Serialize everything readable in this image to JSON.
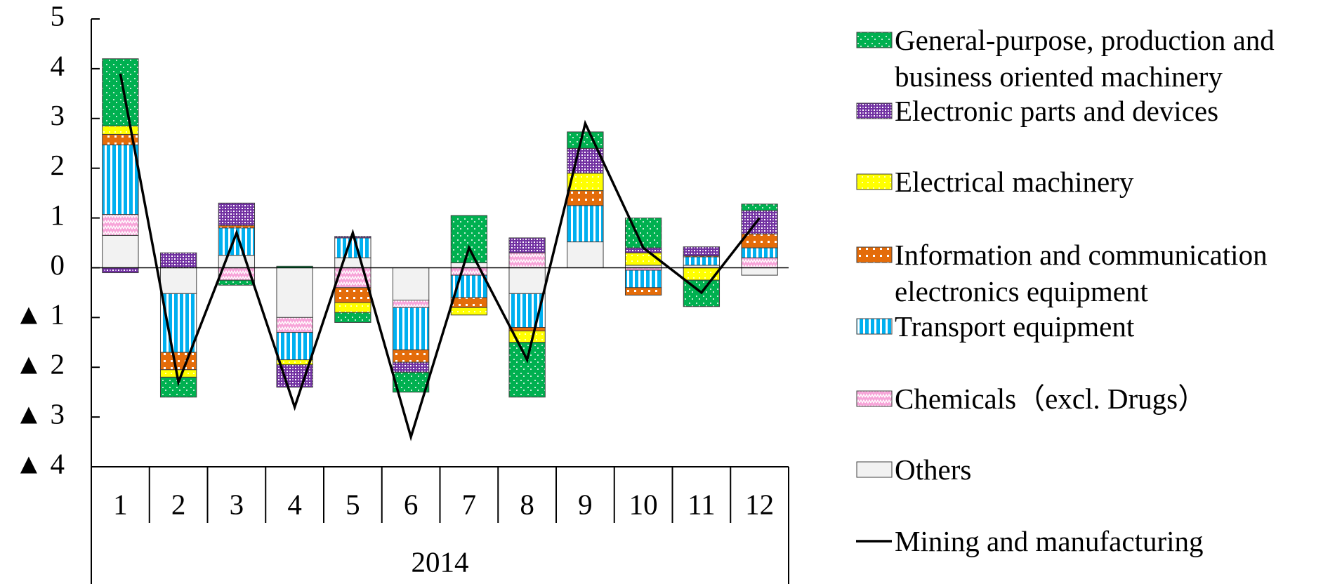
{
  "chart_data": {
    "type": "bar",
    "stacked": true,
    "categories": [
      "1",
      "2",
      "3",
      "4",
      "5",
      "6",
      "7",
      "8",
      "9",
      "10",
      "11",
      "12"
    ],
    "category_group": "2014",
    "ylim": [
      -4,
      5
    ],
    "yticks": [
      {
        "value": -4,
        "label": "▲ 4"
      },
      {
        "value": -3,
        "label": "▲ 3"
      },
      {
        "value": -2,
        "label": "▲ 2"
      },
      {
        "value": -1,
        "label": "▲ 1"
      },
      0,
      1,
      2,
      3,
      4,
      5
    ],
    "series": [
      {
        "name": "General-purpose, production and business oriented machinery",
        "color": "#00b050",
        "values": [
          1.35,
          -0.4,
          -0.1,
          0.03,
          -0.2,
          -0.4,
          0.95,
          -1.1,
          0.33,
          0.6,
          -0.53,
          0.13
        ]
      },
      {
        "name": "Electronic parts and devices",
        "color": "#7030a0",
        "values": [
          -0.1,
          0.3,
          0.45,
          -0.45,
          0.03,
          -0.2,
          0,
          0.3,
          0.5,
          0.1,
          0.18,
          0.47
        ]
      },
      {
        "name": "Electrical machinery",
        "color": "#ffff00",
        "values": [
          0.17,
          -0.15,
          0,
          -0.1,
          -0.2,
          0,
          -0.15,
          -0.23,
          0.35,
          0.25,
          -0.25,
          0
        ]
      },
      {
        "name": "Information and communication electronics equipment",
        "color": "#e46c0a",
        "values": [
          0.21,
          -0.35,
          0.05,
          0,
          -0.3,
          -0.25,
          -0.2,
          -0.07,
          0.3,
          -0.15,
          0.02,
          0.28
        ]
      },
      {
        "name": "Transport equipment",
        "color": "#00b0f0",
        "values": [
          1.4,
          -1.18,
          0.55,
          -0.55,
          0.4,
          -0.85,
          -0.45,
          -0.68,
          0.73,
          -0.35,
          0.17,
          0.2
        ]
      },
      {
        "name": "Chemicals（excl. Drugs）",
        "color": "#f7a3d8",
        "values": [
          0.42,
          0,
          -0.25,
          -0.3,
          -0.4,
          -0.15,
          -0.15,
          0.3,
          0,
          -0.05,
          0,
          0.2
        ]
      },
      {
        "name": "Others",
        "color": "#f2f2f2",
        "values": [
          0.65,
          -0.52,
          0.25,
          -1.0,
          0.2,
          -0.65,
          0.1,
          -0.52,
          0.52,
          0.05,
          0.05,
          -0.15
        ]
      },
      {
        "name": "Mining and manufacturing",
        "type": "line",
        "color": "#000000",
        "values": [
          3.9,
          -2.3,
          0.7,
          -2.8,
          0.7,
          -3.4,
          0.4,
          -1.85,
          2.9,
          0.4,
          -0.5,
          1.0
        ]
      }
    ]
  }
}
